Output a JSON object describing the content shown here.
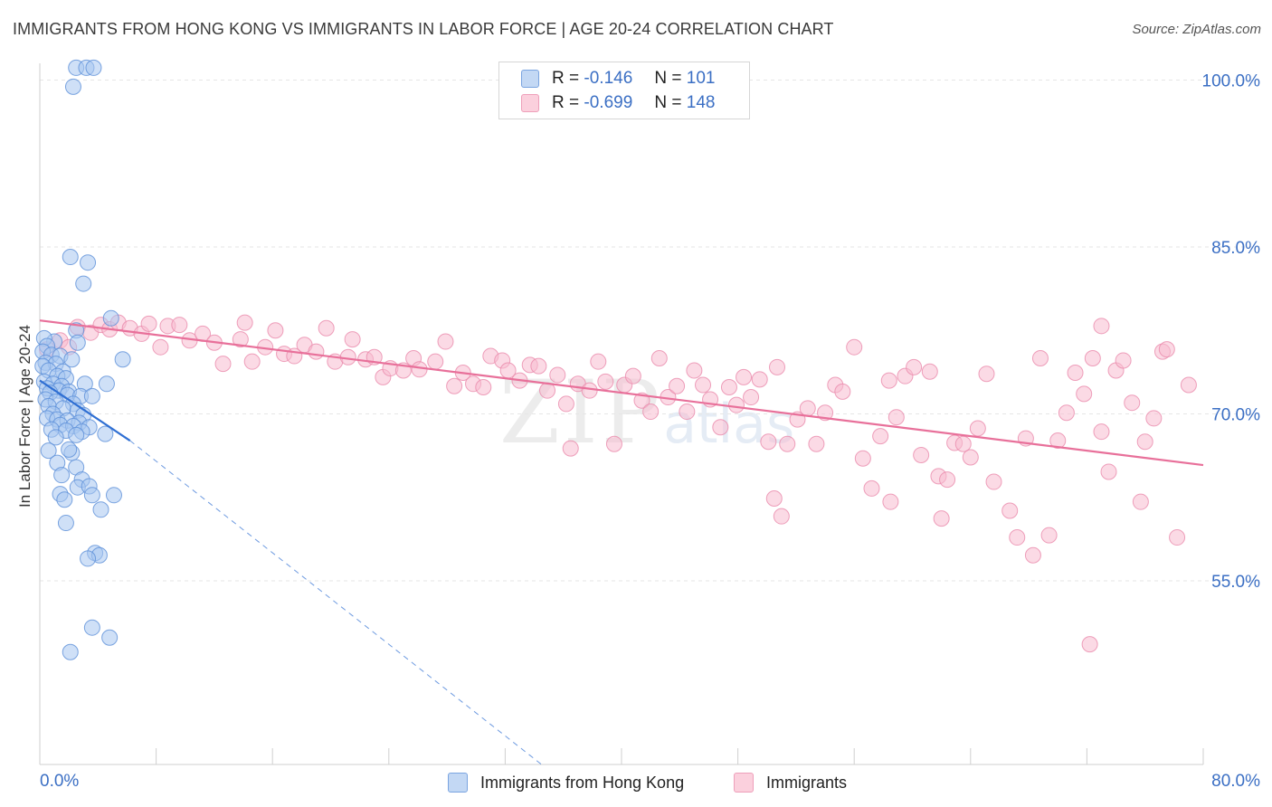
{
  "title": "IMMIGRANTS FROM HONG KONG VS IMMIGRANTS IN LABOR FORCE | AGE 20-24 CORRELATION CHART",
  "source": "Source: ZipAtlas.com",
  "watermark": {
    "zip": "ZIP",
    "atlas": "atlas"
  },
  "legend": {
    "r_label": "R =",
    "n_label": "N =",
    "rows": [
      {
        "r": "-0.146",
        "n": "101",
        "color": "#aec9ee"
      },
      {
        "r": "-0.699",
        "n": "148",
        "color": "#f5b8cb"
      }
    ]
  },
  "colors": {
    "blue_fill": "#a8c7f0",
    "blue_stroke": "#5b8fd8",
    "blue_line": "#2f6fd3",
    "pink_fill": "#f7bcd0",
    "pink_stroke": "#ea8aab",
    "pink_line": "#e8709a",
    "axis_text": "#3b6fc4",
    "grid": "#e6e6e6"
  },
  "chart_data": {
    "type": "scatter",
    "title": "IMMIGRANTS FROM HONG KONG VS IMMIGRANTS IN LABOR FORCE | AGE 20-24 CORRELATION CHART",
    "xlabel": "",
    "ylabel": "In Labor Force | Age 20-24",
    "xlim": [
      0,
      80
    ],
    "ylim": [
      38.5,
      101.5
    ],
    "x_tick_labels": [
      "0.0%",
      "80.0%"
    ],
    "y_ticks": [
      55,
      70,
      85,
      100
    ],
    "y_tick_labels": [
      "55.0%",
      "70.0%",
      "85.0%",
      "100.0%"
    ],
    "grid": true,
    "legend_position": "top-center",
    "series": [
      {
        "name": "Immigrants from Hong Kong",
        "color": "#a8c7f0",
        "points": [
          [
            2.5,
            101.1
          ],
          [
            3.2,
            101.1
          ],
          [
            3.7,
            101.1
          ],
          [
            2.3,
            99.4
          ],
          [
            2.1,
            84.1
          ],
          [
            3.3,
            83.6
          ],
          [
            3.0,
            81.7
          ],
          [
            4.9,
            78.6
          ],
          [
            2.5,
            77.5
          ],
          [
            2.6,
            76.4
          ],
          [
            1.0,
            76.5
          ],
          [
            0.3,
            76.8
          ],
          [
            0.5,
            76.1
          ],
          [
            0.2,
            75.6
          ],
          [
            0.8,
            75.3
          ],
          [
            1.4,
            75.2
          ],
          [
            2.2,
            74.9
          ],
          [
            5.7,
            74.9
          ],
          [
            0.4,
            74.6
          ],
          [
            1.1,
            74.5
          ],
          [
            0.2,
            74.3
          ],
          [
            0.6,
            73.9
          ],
          [
            1.6,
            73.8
          ],
          [
            1.2,
            73.4
          ],
          [
            1.8,
            73.2
          ],
          [
            0.3,
            72.9
          ],
          [
            0.9,
            72.7
          ],
          [
            1.5,
            72.5
          ],
          [
            3.1,
            72.7
          ],
          [
            4.6,
            72.7
          ],
          [
            0.5,
            72.3
          ],
          [
            1.3,
            72.1
          ],
          [
            2.0,
            72.0
          ],
          [
            0.7,
            71.9
          ],
          [
            1.9,
            71.7
          ],
          [
            2.8,
            71.6
          ],
          [
            3.6,
            71.6
          ],
          [
            0.4,
            71.3
          ],
          [
            1.1,
            71.1
          ],
          [
            2.3,
            70.9
          ],
          [
            0.6,
            70.7
          ],
          [
            1.6,
            70.5
          ],
          [
            2.6,
            70.3
          ],
          [
            0.9,
            70.0
          ],
          [
            3.0,
            69.9
          ],
          [
            0.5,
            69.6
          ],
          [
            1.2,
            69.5
          ],
          [
            1.9,
            69.4
          ],
          [
            2.7,
            69.2
          ],
          [
            1.4,
            69.0
          ],
          [
            2.3,
            68.9
          ],
          [
            3.4,
            68.8
          ],
          [
            0.8,
            68.6
          ],
          [
            1.8,
            68.5
          ],
          [
            2.9,
            68.4
          ],
          [
            4.5,
            68.2
          ],
          [
            1.1,
            67.9
          ],
          [
            2.5,
            68.1
          ],
          [
            0.6,
            66.7
          ],
          [
            2.2,
            66.5
          ],
          [
            2.0,
            66.8
          ],
          [
            1.2,
            65.6
          ],
          [
            2.5,
            65.2
          ],
          [
            1.5,
            64.5
          ],
          [
            2.9,
            64.1
          ],
          [
            1.4,
            62.8
          ],
          [
            2.6,
            63.4
          ],
          [
            3.4,
            63.5
          ],
          [
            5.1,
            62.7
          ],
          [
            1.7,
            62.3
          ],
          [
            3.6,
            62.7
          ],
          [
            1.8,
            60.2
          ],
          [
            4.2,
            61.4
          ],
          [
            3.8,
            57.5
          ],
          [
            4.1,
            57.3
          ],
          [
            3.3,
            57.0
          ],
          [
            3.6,
            50.8
          ],
          [
            4.8,
            49.9
          ],
          [
            2.1,
            48.6
          ]
        ]
      },
      {
        "name": "Immigrants",
        "color": "#f7bcd0",
        "points": [
          [
            0.5,
            75.8
          ],
          [
            1.4,
            76.6
          ],
          [
            2.0,
            76.0
          ],
          [
            2.6,
            77.8
          ],
          [
            3.5,
            77.3
          ],
          [
            4.2,
            78.0
          ],
          [
            4.8,
            77.6
          ],
          [
            5.4,
            78.2
          ],
          [
            6.2,
            77.7
          ],
          [
            7.0,
            77.2
          ],
          [
            7.5,
            78.1
          ],
          [
            8.3,
            76.0
          ],
          [
            8.8,
            77.9
          ],
          [
            9.6,
            78.0
          ],
          [
            10.3,
            76.6
          ],
          [
            11.2,
            77.2
          ],
          [
            12.0,
            76.4
          ],
          [
            12.6,
            74.5
          ],
          [
            13.8,
            76.7
          ],
          [
            14.1,
            78.2
          ],
          [
            14.6,
            74.7
          ],
          [
            15.5,
            76.0
          ],
          [
            16.2,
            77.5
          ],
          [
            16.8,
            75.4
          ],
          [
            17.5,
            75.2
          ],
          [
            18.2,
            76.2
          ],
          [
            19.0,
            75.6
          ],
          [
            19.7,
            77.7
          ],
          [
            20.3,
            74.7
          ],
          [
            21.2,
            75.1
          ],
          [
            21.5,
            76.7
          ],
          [
            22.4,
            74.9
          ],
          [
            23.0,
            75.1
          ],
          [
            23.6,
            73.3
          ],
          [
            24.1,
            74.1
          ],
          [
            25.0,
            73.9
          ],
          [
            25.7,
            75.0
          ],
          [
            26.1,
            74.0
          ],
          [
            27.2,
            74.7
          ],
          [
            27.9,
            76.5
          ],
          [
            28.5,
            72.5
          ],
          [
            29.1,
            73.7
          ],
          [
            29.8,
            72.7
          ],
          [
            30.5,
            72.4
          ],
          [
            31.0,
            75.2
          ],
          [
            31.8,
            74.8
          ],
          [
            32.2,
            73.9
          ],
          [
            33.0,
            73.0
          ],
          [
            33.7,
            74.4
          ],
          [
            34.3,
            74.3
          ],
          [
            34.9,
            72.1
          ],
          [
            35.6,
            73.5
          ],
          [
            36.2,
            70.9
          ],
          [
            36.5,
            66.9
          ],
          [
            37.0,
            72.7
          ],
          [
            37.8,
            72.1
          ],
          [
            38.4,
            74.7
          ],
          [
            38.9,
            72.9
          ],
          [
            39.5,
            67.3
          ],
          [
            40.2,
            72.6
          ],
          [
            40.8,
            73.4
          ],
          [
            41.4,
            71.2
          ],
          [
            42.0,
            70.2
          ],
          [
            42.6,
            75.0
          ],
          [
            43.2,
            71.5
          ],
          [
            43.8,
            72.5
          ],
          [
            44.5,
            70.2
          ],
          [
            45.0,
            73.9
          ],
          [
            45.6,
            72.6
          ],
          [
            46.1,
            71.3
          ],
          [
            46.8,
            68.8
          ],
          [
            47.4,
            72.4
          ],
          [
            47.9,
            70.8
          ],
          [
            48.4,
            73.3
          ],
          [
            48.9,
            71.5
          ],
          [
            49.5,
            73.1
          ],
          [
            50.1,
            67.5
          ],
          [
            50.7,
            74.2
          ],
          [
            51.4,
            67.3
          ],
          [
            52.1,
            69.5
          ],
          [
            52.8,
            70.5
          ],
          [
            53.4,
            67.3
          ],
          [
            54.0,
            70.1
          ],
          [
            54.7,
            72.6
          ],
          [
            55.2,
            72.0
          ],
          [
            56.0,
            76.0
          ],
          [
            56.6,
            66.0
          ],
          [
            57.2,
            63.3
          ],
          [
            57.8,
            68.0
          ],
          [
            58.4,
            73.0
          ],
          [
            58.9,
            69.7
          ],
          [
            59.5,
            73.4
          ],
          [
            60.1,
            74.2
          ],
          [
            60.6,
            66.3
          ],
          [
            61.2,
            73.8
          ],
          [
            61.8,
            64.4
          ],
          [
            62.4,
            64.1
          ],
          [
            62.9,
            67.4
          ],
          [
            63.5,
            67.3
          ],
          [
            64.0,
            66.1
          ],
          [
            64.5,
            68.7
          ],
          [
            65.1,
            73.6
          ],
          [
            65.6,
            63.9
          ],
          [
            66.7,
            61.3
          ],
          [
            67.2,
            58.9
          ],
          [
            67.8,
            67.8
          ],
          [
            68.3,
            57.3
          ],
          [
            68.8,
            75.0
          ],
          [
            69.4,
            59.1
          ],
          [
            70.0,
            67.6
          ],
          [
            70.6,
            70.1
          ],
          [
            71.2,
            73.7
          ],
          [
            71.8,
            71.8
          ],
          [
            72.4,
            75.0
          ],
          [
            73.0,
            68.4
          ],
          [
            73.5,
            64.8
          ],
          [
            74.0,
            73.9
          ],
          [
            74.5,
            74.8
          ],
          [
            75.1,
            71.0
          ],
          [
            75.7,
            62.1
          ],
          [
            76.0,
            67.5
          ],
          [
            76.6,
            69.6
          ],
          [
            77.2,
            75.6
          ],
          [
            78.2,
            58.9
          ],
          [
            79.0,
            72.6
          ],
          [
            72.2,
            49.3
          ],
          [
            50.5,
            62.4
          ],
          [
            51.0,
            60.8
          ],
          [
            58.5,
            62.1
          ],
          [
            62.0,
            60.6
          ],
          [
            73.0,
            77.9
          ],
          [
            77.5,
            75.8
          ]
        ]
      }
    ],
    "trendlines": [
      {
        "series": "Immigrants from Hong Kong",
        "x0": 0,
        "y0": 73.0,
        "x1": 6.2,
        "y1": 67.6,
        "dashed_extension_to": [
          34.5,
          38.5
        ]
      },
      {
        "series": "Immigrants",
        "x0": 0,
        "y0": 78.4,
        "x1": 80,
        "y1": 65.4
      }
    ]
  }
}
